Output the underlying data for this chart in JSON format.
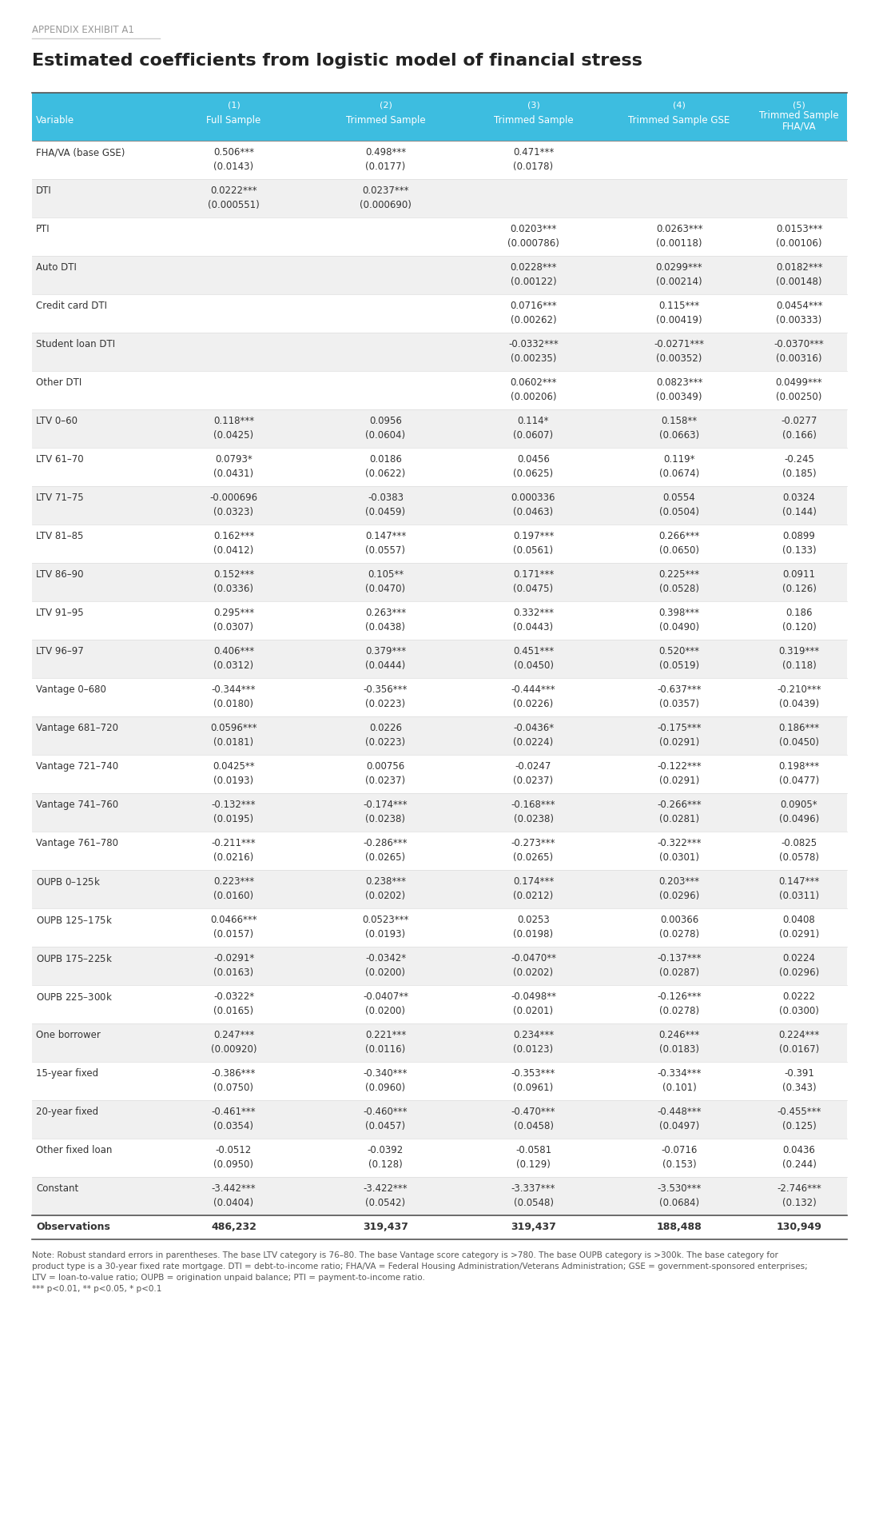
{
  "appendix_label": "APPENDIX EXHIBIT A1",
  "title": "Estimated coefficients from logistic model of financial stress",
  "col_headers_line1": [
    "",
    "(1)",
    "(2)",
    "(3)",
    "(4)",
    "(5)"
  ],
  "col_headers_line2": [
    "Variable",
    "Full Sample",
    "Trimmed Sample",
    "Trimmed Sample",
    "Trimmed Sample GSE",
    "Trimmed Sample\nFHA/VA"
  ],
  "rows": [
    {
      "var": "FHA/VA (base GSE)",
      "shaded": false,
      "vals": [
        [
          "0.506***",
          "0.498***",
          "0.471***",
          "",
          ""
        ],
        [
          "(0.0143)",
          "(0.0177)",
          "(0.0178)",
          "",
          ""
        ]
      ]
    },
    {
      "var": "DTI",
      "shaded": true,
      "vals": [
        [
          "0.0222***",
          "0.0237***",
          "",
          "",
          ""
        ],
        [
          "(0.000551)",
          "(0.000690)",
          "",
          "",
          ""
        ]
      ]
    },
    {
      "var": "PTI",
      "shaded": false,
      "vals": [
        [
          "",
          "",
          "0.0203***",
          "0.0263***",
          "0.0153***"
        ],
        [
          "",
          "",
          "(0.000786)",
          "(0.00118)",
          "(0.00106)"
        ]
      ]
    },
    {
      "var": "Auto DTI",
      "shaded": true,
      "vals": [
        [
          "",
          "",
          "0.0228***",
          "0.0299***",
          "0.0182***"
        ],
        [
          "",
          "",
          "(0.00122)",
          "(0.00214)",
          "(0.00148)"
        ]
      ]
    },
    {
      "var": "Credit card DTI",
      "shaded": false,
      "vals": [
        [
          "",
          "",
          "0.0716***",
          "0.115***",
          "0.0454***"
        ],
        [
          "",
          "",
          "(0.00262)",
          "(0.00419)",
          "(0.00333)"
        ]
      ]
    },
    {
      "var": "Student loan DTI",
      "shaded": true,
      "vals": [
        [
          "",
          "",
          "-0.0332***",
          "-0.0271***",
          "-0.0370***"
        ],
        [
          "",
          "",
          "(0.00235)",
          "(0.00352)",
          "(0.00316)"
        ]
      ]
    },
    {
      "var": "Other DTI",
      "shaded": false,
      "vals": [
        [
          "",
          "",
          "0.0602***",
          "0.0823***",
          "0.0499***"
        ],
        [
          "",
          "",
          "(0.00206)",
          "(0.00349)",
          "(0.00250)"
        ]
      ]
    },
    {
      "var": "LTV 0–60",
      "shaded": true,
      "vals": [
        [
          "0.118***",
          "0.0956",
          "0.114*",
          "0.158**",
          "-0.0277"
        ],
        [
          "(0.0425)",
          "(0.0604)",
          "(0.0607)",
          "(0.0663)",
          "(0.166)"
        ]
      ]
    },
    {
      "var": "LTV 61–70",
      "shaded": false,
      "vals": [
        [
          "0.0793*",
          "0.0186",
          "0.0456",
          "0.119*",
          "-0.245"
        ],
        [
          "(0.0431)",
          "(0.0622)",
          "(0.0625)",
          "(0.0674)",
          "(0.185)"
        ]
      ]
    },
    {
      "var": "LTV 71–75",
      "shaded": true,
      "vals": [
        [
          "-0.000696",
          "-0.0383",
          "0.000336",
          "0.0554",
          "0.0324"
        ],
        [
          "(0.0323)",
          "(0.0459)",
          "(0.0463)",
          "(0.0504)",
          "(0.144)"
        ]
      ]
    },
    {
      "var": "LTV 81–85",
      "shaded": false,
      "vals": [
        [
          "0.162***",
          "0.147***",
          "0.197***",
          "0.266***",
          "0.0899"
        ],
        [
          "(0.0412)",
          "(0.0557)",
          "(0.0561)",
          "(0.0650)",
          "(0.133)"
        ]
      ]
    },
    {
      "var": "LTV 86–90",
      "shaded": true,
      "vals": [
        [
          "0.152***",
          "0.105**",
          "0.171***",
          "0.225***",
          "0.0911"
        ],
        [
          "(0.0336)",
          "(0.0470)",
          "(0.0475)",
          "(0.0528)",
          "(0.126)"
        ]
      ]
    },
    {
      "var": "LTV 91–95",
      "shaded": false,
      "vals": [
        [
          "0.295***",
          "0.263***",
          "0.332***",
          "0.398***",
          "0.186"
        ],
        [
          "(0.0307)",
          "(0.0438)",
          "(0.0443)",
          "(0.0490)",
          "(0.120)"
        ]
      ]
    },
    {
      "var": "LTV 96–97",
      "shaded": true,
      "vals": [
        [
          "0.406***",
          "0.379***",
          "0.451***",
          "0.520***",
          "0.319***"
        ],
        [
          "(0.0312)",
          "(0.0444)",
          "(0.0450)",
          "(0.0519)",
          "(0.118)"
        ]
      ]
    },
    {
      "var": "Vantage 0–680",
      "shaded": false,
      "vals": [
        [
          "-0.344***",
          "-0.356***",
          "-0.444***",
          "-0.637***",
          "-0.210***"
        ],
        [
          "(0.0180)",
          "(0.0223)",
          "(0.0226)",
          "(0.0357)",
          "(0.0439)"
        ]
      ]
    },
    {
      "var": "Vantage 681–720",
      "shaded": true,
      "vals": [
        [
          "0.0596***",
          "0.0226",
          "-0.0436*",
          "-0.175***",
          "0.186***"
        ],
        [
          "(0.0181)",
          "(0.0223)",
          "(0.0224)",
          "(0.0291)",
          "(0.0450)"
        ]
      ]
    },
    {
      "var": "Vantage 721–740",
      "shaded": false,
      "vals": [
        [
          "0.0425**",
          "0.00756",
          "-0.0247",
          "-0.122***",
          "0.198***"
        ],
        [
          "(0.0193)",
          "(0.0237)",
          "(0.0237)",
          "(0.0291)",
          "(0.0477)"
        ]
      ]
    },
    {
      "var": "Vantage 741–760",
      "shaded": true,
      "vals": [
        [
          "-0.132***",
          "-0.174***",
          "-0.168***",
          "-0.266***",
          "0.0905*"
        ],
        [
          "(0.0195)",
          "(0.0238)",
          "(0.0238)",
          "(0.0281)",
          "(0.0496)"
        ]
      ]
    },
    {
      "var": "Vantage 761–780",
      "shaded": false,
      "vals": [
        [
          "-0.211***",
          "-0.286***",
          "-0.273***",
          "-0.322***",
          "-0.0825"
        ],
        [
          "(0.0216)",
          "(0.0265)",
          "(0.0265)",
          "(0.0301)",
          "(0.0578)"
        ]
      ]
    },
    {
      "var": "OUPB $0–$125k",
      "shaded": true,
      "vals": [
        [
          "0.223***",
          "0.238***",
          "0.174***",
          "0.203***",
          "0.147***"
        ],
        [
          "(0.0160)",
          "(0.0202)",
          "(0.0212)",
          "(0.0296)",
          "(0.0311)"
        ]
      ]
    },
    {
      "var": "OUPB $125–$175k",
      "shaded": false,
      "vals": [
        [
          "0.0466***",
          "0.0523***",
          "0.0253",
          "0.00366",
          "0.0408"
        ],
        [
          "(0.0157)",
          "(0.0193)",
          "(0.0198)",
          "(0.0278)",
          "(0.0291)"
        ]
      ]
    },
    {
      "var": "OUPB $175–$225k",
      "shaded": true,
      "vals": [
        [
          "-0.0291*",
          "-0.0342*",
          "-0.0470**",
          "-0.137***",
          "0.0224"
        ],
        [
          "(0.0163)",
          "(0.0200)",
          "(0.0202)",
          "(0.0287)",
          "(0.0296)"
        ]
      ]
    },
    {
      "var": "OUPB $225–$300k",
      "shaded": false,
      "vals": [
        [
          "-0.0322*",
          "-0.0407**",
          "-0.0498**",
          "-0.126***",
          "0.0222"
        ],
        [
          "(0.0165)",
          "(0.0200)",
          "(0.0201)",
          "(0.0278)",
          "(0.0300)"
        ]
      ]
    },
    {
      "var": "One borrower",
      "shaded": true,
      "vals": [
        [
          "0.247***",
          "0.221***",
          "0.234***",
          "0.246***",
          "0.224***"
        ],
        [
          "(0.00920)",
          "(0.0116)",
          "(0.0123)",
          "(0.0183)",
          "(0.0167)"
        ]
      ]
    },
    {
      "var": "15-year fixed",
      "shaded": false,
      "vals": [
        [
          "-0.386***",
          "-0.340***",
          "-0.353***",
          "-0.334***",
          "-0.391"
        ],
        [
          "(0.0750)",
          "(0.0960)",
          "(0.0961)",
          "(0.101)",
          "(0.343)"
        ]
      ]
    },
    {
      "var": "20-year fixed",
      "shaded": true,
      "vals": [
        [
          "-0.461***",
          "-0.460***",
          "-0.470***",
          "-0.448***",
          "-0.455***"
        ],
        [
          "(0.0354)",
          "(0.0457)",
          "(0.0458)",
          "(0.0497)",
          "(0.125)"
        ]
      ]
    },
    {
      "var": "Other fixed loan",
      "shaded": false,
      "vals": [
        [
          "-0.0512",
          "-0.0392",
          "-0.0581",
          "-0.0716",
          "0.0436"
        ],
        [
          "(0.0950)",
          "(0.128)",
          "(0.129)",
          "(0.153)",
          "(0.244)"
        ]
      ]
    },
    {
      "var": "Constant",
      "shaded": true,
      "vals": [
        [
          "-3.442***",
          "-3.422***",
          "-3.337***",
          "-3.530***",
          "-2.746***"
        ],
        [
          "(0.0404)",
          "(0.0542)",
          "(0.0548)",
          "(0.0684)",
          "(0.132)"
        ]
      ]
    }
  ],
  "obs_row": {
    "label": "Observations",
    "vals": [
      "486,232",
      "319,437",
      "319,437",
      "188,488",
      "130,949"
    ]
  },
  "note": "Note: Robust standard errors in parentheses. The base LTV category is 76–80. The base Vantage score category is >780. The base OUPB category is >300k. The base category for\nproduct type is a 30-year fixed rate mortgage. DTI = debt-to-income ratio; FHA/VA = Federal Housing Administration/Veterans Administration; GSE = government-sponsored enterprises;\nLTV = loan-to-value ratio; OUPB = origination unpaid balance; PTI = payment-to-income ratio.\n*** p<0.01, ** p<0.05, * p<0.1",
  "header_bg": "#3dbde0",
  "header_text": "#ffffff",
  "shaded_bg": "#f0f0f0",
  "white_bg": "#ffffff",
  "obs_bg": "#ffffff",
  "text_color": "#333333",
  "title_color": "#222222",
  "appendix_color": "#999999",
  "bold_vars": [
    "Observations"
  ]
}
